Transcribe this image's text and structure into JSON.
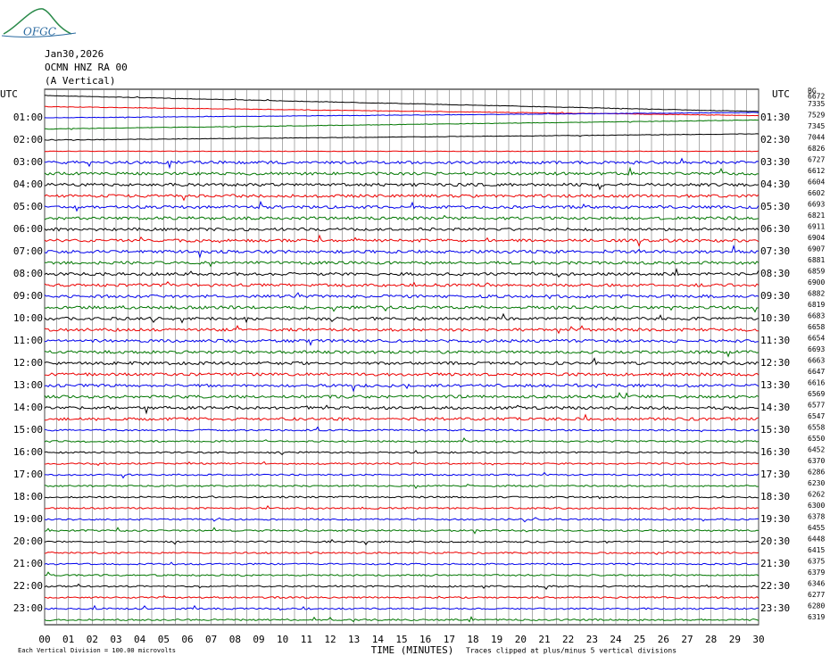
{
  "logo": "OFGC",
  "header": {
    "lines": [
      "Jan30,2026",
      "OCMN HNZ RA 00",
      "(A Vertical)"
    ]
  },
  "left_labels": [
    "UTC",
    "01:00",
    "02:00",
    "03:00",
    "04:00",
    "05:00",
    "06:00",
    "07:00",
    "08:00",
    "09:00",
    "10:00",
    "11:00",
    "12:00",
    "13:00",
    "14:00",
    "15:00",
    "16:00",
    "17:00",
    "18:00",
    "19:00",
    "20:00",
    "21:00",
    "22:00",
    "23:00"
  ],
  "right_labels": [
    "UTC",
    "01:30",
    "02:30",
    "03:30",
    "04:30",
    "05:30",
    "06:30",
    "07:30",
    "08:30",
    "09:30",
    "10:30",
    "11:30",
    "12:30",
    "13:30",
    "14:30",
    "15:30",
    "16:30",
    "17:30",
    "18:30",
    "19:30",
    "20:30",
    "21:30",
    "22:30",
    "23:30"
  ],
  "right_top": "BG",
  "counts": [
    "6672",
    "7335",
    "7529",
    "7345",
    "7044",
    "6826",
    "6727",
    "6612",
    "6604",
    "6602",
    "6693",
    "6821",
    "6911",
    "6904",
    "6907",
    "6881",
    "6859",
    "6900",
    "6882",
    "6819",
    "6683",
    "6658",
    "6654",
    "6693",
    "6663",
    "6647",
    "6616",
    "6569",
    "6577",
    "6547",
    "6558",
    "6550",
    "6452",
    "6370",
    "6286",
    "6230",
    "6262",
    "6300",
    "6378",
    "6455",
    "6448",
    "6415",
    "6375",
    "6379",
    "6346",
    "6277",
    "6280",
    "6319"
  ],
  "x_ticks": [
    "00",
    "01",
    "02",
    "03",
    "04",
    "05",
    "06",
    "07",
    "08",
    "09",
    "10",
    "11",
    "12",
    "13",
    "14",
    "15",
    "16",
    "17",
    "18",
    "19",
    "20",
    "21",
    "22",
    "23",
    "24",
    "25",
    "26",
    "27",
    "28",
    "29",
    "30"
  ],
  "footer": {
    "scale": "Each Vertical Division =  100.00 microvolts",
    "axis": "TIME (MINUTES)",
    "clip": "Traces clipped at plus/minus 5 vertical divisions"
  }
}
